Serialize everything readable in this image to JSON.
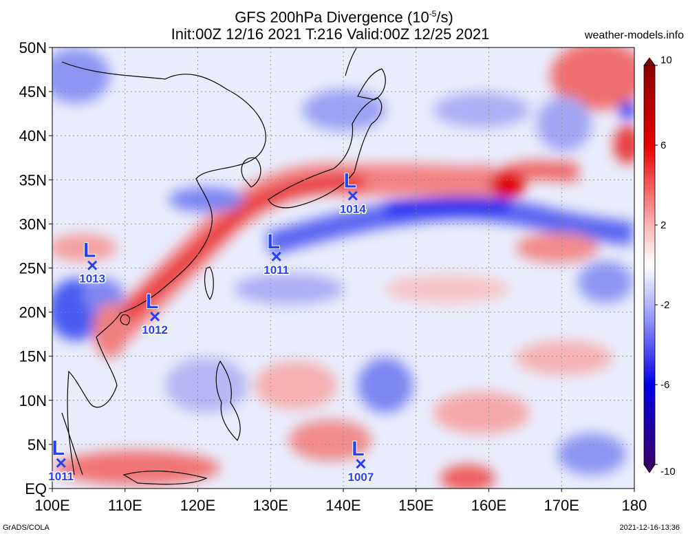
{
  "header": {
    "title_prefix": "GFS 200hPa Divergence (10",
    "title_exp": "-5",
    "title_suffix": "/s)",
    "subtitle": "Init:00Z 12/16 2021 T:216 Valid:00Z 12/25 2021",
    "site": "weather-models.info"
  },
  "footer": {
    "credit": "GrADS/COLA",
    "timestamp": "2021-12-16-13:36"
  },
  "map": {
    "lon_range": [
      100,
      180
    ],
    "lat_range": [
      0,
      50
    ],
    "lon_ticks": [
      "100E",
      "110E",
      "120E",
      "130E",
      "140E",
      "150E",
      "160E",
      "170E",
      "180"
    ],
    "lat_ticks": [
      "EQ",
      "5N",
      "10N",
      "15N",
      "20N",
      "25N",
      "30N",
      "35N",
      "40N",
      "45N",
      "50N"
    ],
    "grid": true
  },
  "colorbar": {
    "labels": [
      "10",
      "6",
      "2",
      "-2",
      "-6",
      "-10"
    ],
    "values": [
      10,
      6,
      2,
      -2,
      -6,
      -10
    ],
    "colors": {
      "max": "#b40000",
      "mid": "#ffffff",
      "min": "#2a006e"
    }
  },
  "lows": [
    {
      "symbol": "L",
      "pressure": "1014",
      "lon": 141.3,
      "lat": 33.2
    },
    {
      "symbol": "L",
      "pressure": "1011",
      "lon": 130.8,
      "lat": 26.3
    },
    {
      "symbol": "L",
      "pressure": "1013",
      "lon": 105.5,
      "lat": 25.3
    },
    {
      "symbol": "L",
      "pressure": "1012",
      "lon": 114.1,
      "lat": 19.5
    },
    {
      "symbol": "L",
      "pressure": "1011",
      "lon": 101.2,
      "lat": 2.9
    },
    {
      "symbol": "L",
      "pressure": "1007",
      "lon": 142.4,
      "lat": 2.8
    }
  ]
}
